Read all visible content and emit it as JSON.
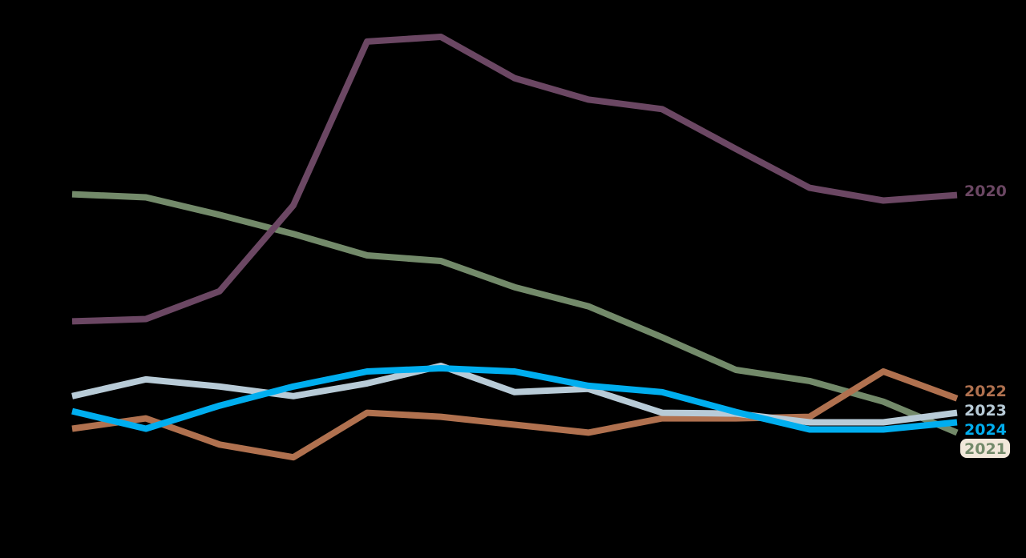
{
  "chart_data": {
    "type": "line",
    "title": "",
    "xlabel": "",
    "ylabel": "",
    "x": [
      1,
      2,
      3,
      4,
      5,
      6,
      7,
      8,
      9,
      10,
      11,
      12,
      13
    ],
    "ylim": [
      0,
      56
    ],
    "grid": false,
    "legend_position": "end-of-line labels (right)",
    "series": [
      {
        "name": "2020",
        "color": "#6B4763",
        "values": [
          20.0,
          20.3,
          23.8,
          34.6,
          55.2,
          55.8,
          50.6,
          47.9,
          46.7,
          41.7,
          36.8,
          35.2,
          35.9
        ]
      },
      {
        "name": "2021",
        "color": "#738A6A",
        "values": [
          36.0,
          35.6,
          33.4,
          31.0,
          28.3,
          27.6,
          24.3,
          21.9,
          18.0,
          13.9,
          12.5,
          9.9,
          6.0
        ]
      },
      {
        "name": "2022",
        "color": "#B0714F",
        "values": [
          6.5,
          7.8,
          4.5,
          2.9,
          8.5,
          8.0,
          7.0,
          6.0,
          7.8,
          7.8,
          8.0,
          13.7,
          10.3
        ]
      },
      {
        "name": "2023",
        "color": "#B8CBD7",
        "values": [
          10.6,
          12.7,
          11.8,
          10.6,
          12.2,
          14.4,
          11.1,
          11.5,
          8.5,
          8.4,
          7.3,
          7.3,
          8.5
        ]
      },
      {
        "name": "2024",
        "color": "#00AEEF",
        "values": [
          8.7,
          6.5,
          9.4,
          11.8,
          13.7,
          14.1,
          13.7,
          11.9,
          11.1,
          8.6,
          6.4,
          6.4,
          7.3
        ]
      }
    ]
  },
  "labels": {
    "s2020": "2020",
    "s2021": "2021",
    "s2022": "2022",
    "s2023": "2023",
    "s2024": "2024"
  }
}
